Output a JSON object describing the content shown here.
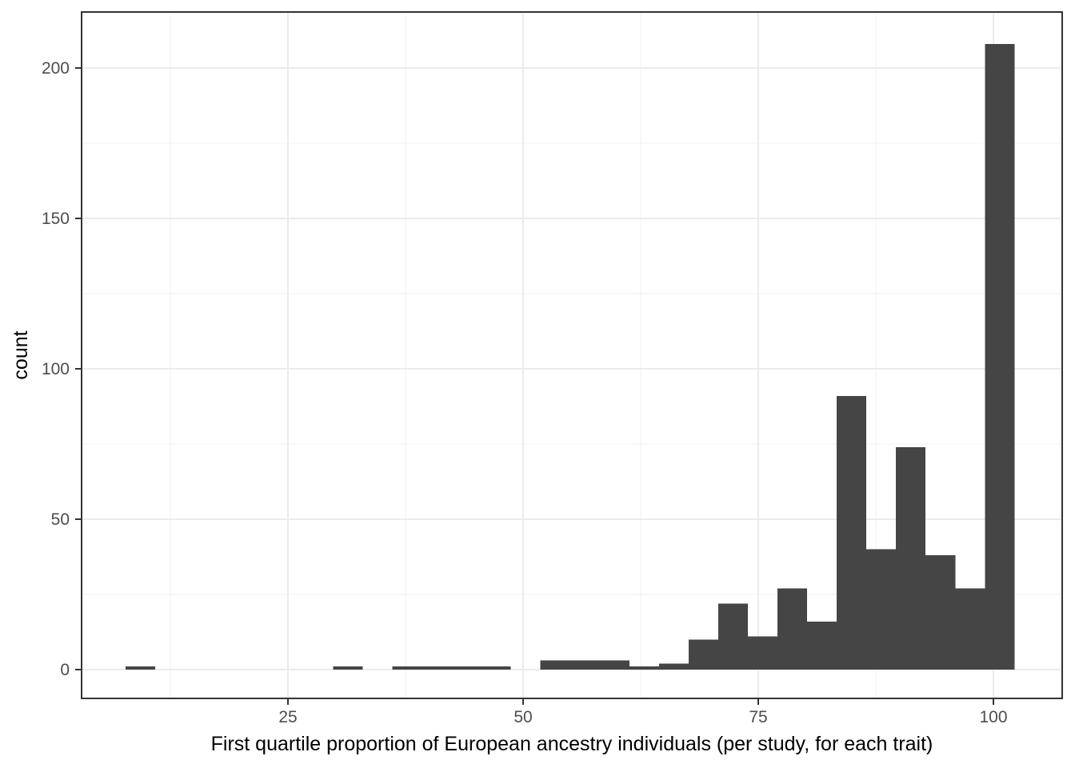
{
  "chart_data": {
    "type": "bar",
    "subtype": "histogram",
    "title": "",
    "xlabel": "First quartile proportion of European ancestry individuals (per study, for each trait)",
    "ylabel": "count",
    "x_ticks": [
      25,
      50,
      75,
      100
    ],
    "x_tick_labels": [
      "25",
      "50",
      "75",
      "100"
    ],
    "y_ticks": [
      0,
      50,
      100,
      150,
      200
    ],
    "y_tick_labels": [
      "0",
      "50",
      "100",
      "150",
      "200"
    ],
    "x_minor_gridlines": [
      12.5,
      37.5,
      62.5,
      87.5
    ],
    "y_minor_gridlines": [
      25,
      75,
      125,
      175
    ],
    "xlim": [
      3.0,
      107.4
    ],
    "ylim": [
      -9.6,
      218.0
    ],
    "grid": true,
    "legend_position": "none",
    "bin_start": 7.74,
    "bin_width": 3.15,
    "counts": [
      1,
      0,
      0,
      0,
      0,
      0,
      0,
      1,
      0,
      1,
      1,
      1,
      1,
      0,
      3,
      3,
      3,
      1,
      2,
      10,
      22,
      11,
      27,
      16,
      91,
      40,
      74,
      38,
      27,
      208
    ],
    "colors": {
      "bar_fill": "#454545",
      "grid_major": "#EBEBEB",
      "grid_minor": "#F0F0F0",
      "panel_border": "#333333",
      "tick_mark": "#333333",
      "tick_label": "#4D4D4D",
      "axis_title": "#000000",
      "panel_background": "#FFFFFF",
      "figure_background": "#FFFFFF"
    }
  }
}
